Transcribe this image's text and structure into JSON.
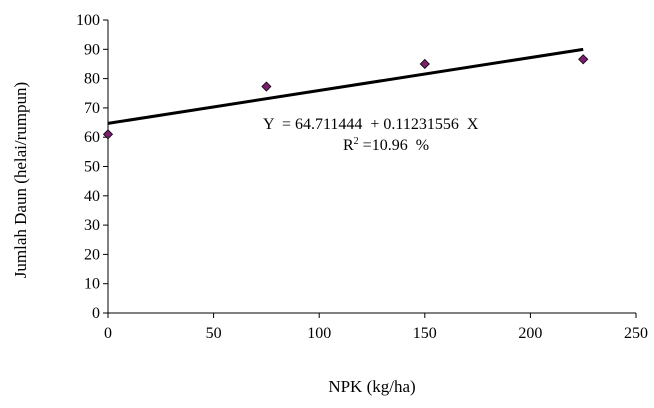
{
  "chart_data": {
    "type": "scatter",
    "xlabel": "NPK (kg/ha)",
    "ylabel": "Jumlah Daun (helai/rumpun)",
    "xlim": [
      0,
      250
    ],
    "ylim": [
      0,
      100
    ],
    "xticks": [
      0,
      50,
      100,
      150,
      200,
      250
    ],
    "yticks": [
      0,
      10,
      20,
      30,
      40,
      50,
      60,
      70,
      80,
      90,
      100
    ],
    "grid": false,
    "series": [
      {
        "x": [
          0,
          75,
          150,
          225
        ],
        "y": [
          61,
          77.3,
          85,
          86.6
        ],
        "color": "#7a1f6e"
      }
    ],
    "trendline": {
      "intercept": 64.711444,
      "slope": 0.11231556,
      "x_range": [
        0,
        225
      ],
      "color": "#000000"
    },
    "annotations": {
      "equation": "Y  = 64.711444  + 0.11231556  X",
      "r2_prefix": "R",
      "r2_sup": "2",
      "r2_value": " =10.96  %"
    }
  }
}
